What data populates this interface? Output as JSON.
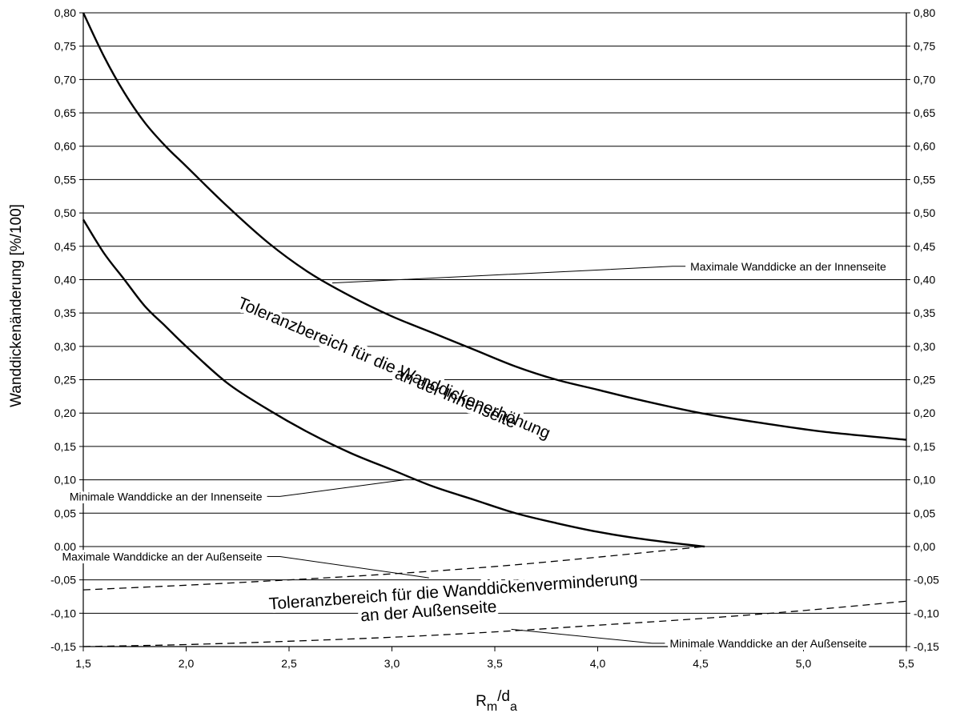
{
  "chart_data": {
    "type": "line",
    "title": "",
    "xlabel_main": "R",
    "xlabel_sub1": "m",
    "xlabel_mid": "/d",
    "xlabel_sub2": "a",
    "ylabel": "Wanddickenänderung [%/100]",
    "xlim": [
      1.5,
      5.5
    ],
    "ylim": [
      -0.15,
      0.8
    ],
    "grid": "horizontal",
    "legend": "none",
    "x_ticks": [
      "1,5",
      "2,0",
      "2,5",
      "3,0",
      "3,5",
      "4,0",
      "4,5",
      "5,0",
      "5,5"
    ],
    "y_ticks": [
      "0,80",
      "0,75",
      "0,70",
      "0,65",
      "0,60",
      "0,55",
      "0,50",
      "0,45",
      "0,40",
      "0,35",
      "0,30",
      "0,25",
      "0,20",
      "0,15",
      "0,10",
      "0,05",
      "0,00",
      "-0,05",
      "-0,10",
      "-0,15"
    ],
    "series": [
      {
        "name": "Maximale Wanddicke an der Innenseite",
        "style": "solid",
        "x": [
          1.5,
          1.6,
          1.7,
          1.8,
          1.9,
          2.0,
          2.2,
          2.4,
          2.6,
          2.8,
          3.0,
          3.2,
          3.4,
          3.6,
          3.8,
          4.0,
          4.2,
          4.5,
          4.8,
          5.1,
          5.5
        ],
        "y": [
          0.8,
          0.735,
          0.68,
          0.635,
          0.6,
          0.57,
          0.51,
          0.455,
          0.41,
          0.375,
          0.345,
          0.32,
          0.295,
          0.27,
          0.25,
          0.235,
          0.22,
          0.2,
          0.185,
          0.172,
          0.16
        ]
      },
      {
        "name": "Minimale Wanddicke an der Innenseite",
        "style": "solid",
        "x": [
          1.5,
          1.6,
          1.7,
          1.8,
          1.9,
          2.0,
          2.2,
          2.4,
          2.6,
          2.8,
          3.0,
          3.2,
          3.4,
          3.6,
          3.8,
          4.0,
          4.2,
          4.4,
          4.52
        ],
        "y": [
          0.49,
          0.44,
          0.4,
          0.36,
          0.33,
          0.3,
          0.245,
          0.205,
          0.17,
          0.14,
          0.115,
          0.09,
          0.07,
          0.05,
          0.035,
          0.022,
          0.012,
          0.004,
          0.0
        ]
      },
      {
        "name": "Maximale Wanddicke an der Außenseite",
        "style": "dashed",
        "x": [
          1.5,
          2.0,
          2.5,
          3.0,
          3.5,
          4.0,
          4.52
        ],
        "y": [
          -0.065,
          -0.058,
          -0.05,
          -0.041,
          -0.03,
          -0.016,
          0.0
        ]
      },
      {
        "name": "Minimale Wanddicke an der Außenseite",
        "style": "dashed",
        "x": [
          1.5,
          2.0,
          2.5,
          3.0,
          3.5,
          4.0,
          4.5,
          5.0,
          5.5
        ],
        "y": [
          -0.15,
          -0.147,
          -0.142,
          -0.136,
          -0.128,
          -0.118,
          -0.108,
          -0.096,
          -0.082
        ]
      }
    ],
    "annotations": [
      {
        "text": "Maximale Wanddicke an der Innenseite",
        "tx": 4.45,
        "ty": 0.42,
        "px": 2.71,
        "py": 0.395,
        "anchor": "start"
      },
      {
        "text": "Minimale Wanddicke an der Innenseite",
        "tx": 2.37,
        "ty": 0.075,
        "px": 3.06,
        "py": 0.1,
        "anchor": "end"
      },
      {
        "text": "Maximale Wanddicke an der Außenseite",
        "tx": 2.37,
        "ty": -0.015,
        "px": 3.18,
        "py": -0.047,
        "anchor": "end"
      },
      {
        "text": "Minimale Wanddicke an der Außenseite",
        "tx": 4.35,
        "ty": -0.145,
        "px": 3.58,
        "py": -0.124,
        "anchor": "start"
      }
    ],
    "region_labels": [
      {
        "text": "Toleranzbereich für die Wanddickenerhöhung",
        "x": 3.0,
        "y": 0.26,
        "rotate": 23
      },
      {
        "text": "an der Innenseite",
        "x": 3.3,
        "y": 0.215,
        "rotate": 23
      },
      {
        "text": "Toleranzbereich für die Wanddickenverminderung",
        "x": 3.3,
        "y": -0.075,
        "rotate": -4
      },
      {
        "text": "an der Außenseite",
        "x": 3.18,
        "y": -0.105,
        "rotate": -4
      }
    ]
  }
}
